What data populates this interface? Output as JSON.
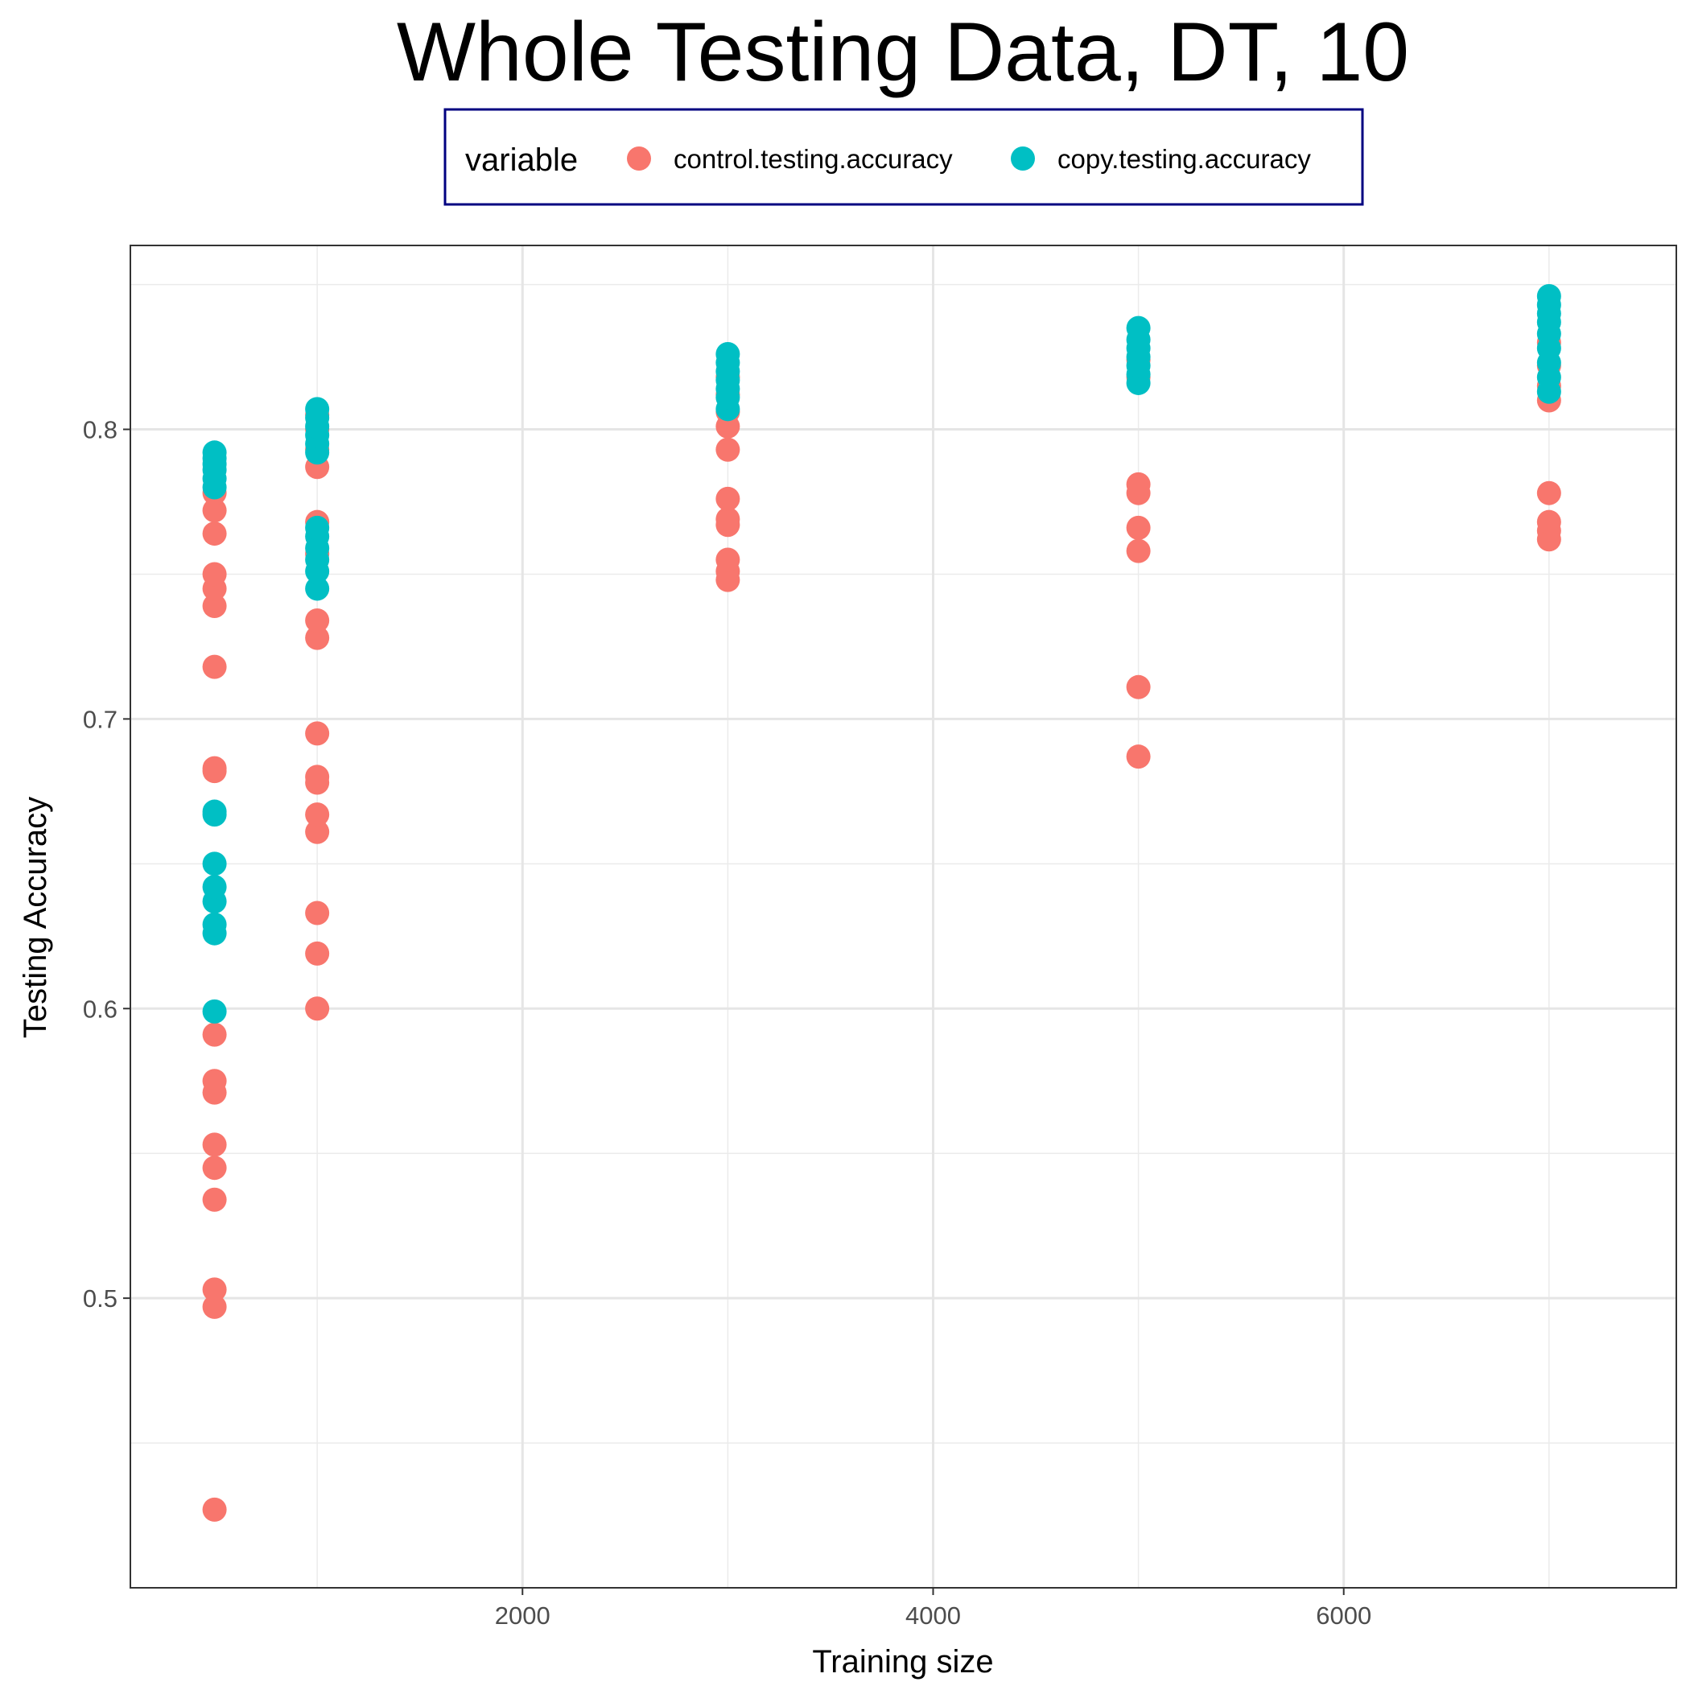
{
  "chart_data": {
    "type": "scatter",
    "title": "Whole Testing Data, DT, 10",
    "xlabel": "Training size",
    "ylabel": "Testing Accuracy",
    "xlim": [
      90,
      7620
    ],
    "ylim": [
      0.4,
      0.8635
    ],
    "x_ticks": [
      2000,
      4000,
      6000
    ],
    "x_tick_labels": [
      "2000",
      "4000",
      "6000"
    ],
    "y_ticks": [
      0.5,
      0.6,
      0.7,
      0.8
    ],
    "y_tick_labels": [
      "0.5",
      "0.6",
      "0.7",
      "0.8"
    ],
    "grid": true,
    "legend": {
      "title": "variable",
      "position": "top",
      "border_color": "#000080"
    },
    "series": [
      {
        "name": "control.testing.accuracy",
        "color": "#F8766D",
        "points": [
          [
            500,
            0.427
          ],
          [
            500,
            0.497
          ],
          [
            500,
            0.503
          ],
          [
            500,
            0.534
          ],
          [
            500,
            0.545
          ],
          [
            500,
            0.553
          ],
          [
            500,
            0.571
          ],
          [
            500,
            0.575
          ],
          [
            500,
            0.591
          ],
          [
            500,
            0.682
          ],
          [
            500,
            0.683
          ],
          [
            500,
            0.718
          ],
          [
            500,
            0.739
          ],
          [
            500,
            0.745
          ],
          [
            500,
            0.75
          ],
          [
            500,
            0.764
          ],
          [
            500,
            0.772
          ],
          [
            500,
            0.778
          ],
          [
            1000,
            0.6
          ],
          [
            1000,
            0.619
          ],
          [
            1000,
            0.633
          ],
          [
            1000,
            0.661
          ],
          [
            1000,
            0.667
          ],
          [
            1000,
            0.678
          ],
          [
            1000,
            0.68
          ],
          [
            1000,
            0.695
          ],
          [
            1000,
            0.728
          ],
          [
            1000,
            0.734
          ],
          [
            1000,
            0.757
          ],
          [
            1000,
            0.768
          ],
          [
            1000,
            0.787
          ],
          [
            1000,
            0.793
          ],
          [
            1000,
            0.8
          ],
          [
            1000,
            0.805
          ],
          [
            3000,
            0.748
          ],
          [
            3000,
            0.751
          ],
          [
            3000,
            0.755
          ],
          [
            3000,
            0.767
          ],
          [
            3000,
            0.769
          ],
          [
            3000,
            0.776
          ],
          [
            3000,
            0.793
          ],
          [
            3000,
            0.801
          ],
          [
            3000,
            0.806
          ],
          [
            3000,
            0.812
          ],
          [
            3000,
            0.818
          ],
          [
            5000,
            0.687
          ],
          [
            5000,
            0.711
          ],
          [
            5000,
            0.758
          ],
          [
            5000,
            0.766
          ],
          [
            5000,
            0.778
          ],
          [
            5000,
            0.781
          ],
          [
            5000,
            0.818
          ],
          [
            5000,
            0.824
          ],
          [
            7000,
            0.762
          ],
          [
            7000,
            0.765
          ],
          [
            7000,
            0.768
          ],
          [
            7000,
            0.778
          ],
          [
            7000,
            0.81
          ],
          [
            7000,
            0.815
          ],
          [
            7000,
            0.822
          ],
          [
            7000,
            0.83
          ]
        ]
      },
      {
        "name": "copy.testing.accuracy",
        "color": "#00BFC4",
        "points": [
          [
            500,
            0.599
          ],
          [
            500,
            0.626
          ],
          [
            500,
            0.629
          ],
          [
            500,
            0.637
          ],
          [
            500,
            0.642
          ],
          [
            500,
            0.65
          ],
          [
            500,
            0.667
          ],
          [
            500,
            0.668
          ],
          [
            500,
            0.78
          ],
          [
            500,
            0.783
          ],
          [
            500,
            0.786
          ],
          [
            500,
            0.788
          ],
          [
            500,
            0.79
          ],
          [
            500,
            0.792
          ],
          [
            1000,
            0.745
          ],
          [
            1000,
            0.751
          ],
          [
            1000,
            0.755
          ],
          [
            1000,
            0.759
          ],
          [
            1000,
            0.763
          ],
          [
            1000,
            0.766
          ],
          [
            1000,
            0.792
          ],
          [
            1000,
            0.795
          ],
          [
            1000,
            0.798
          ],
          [
            1000,
            0.801
          ],
          [
            1000,
            0.804
          ],
          [
            1000,
            0.807
          ],
          [
            3000,
            0.807
          ],
          [
            3000,
            0.811
          ],
          [
            3000,
            0.814
          ],
          [
            3000,
            0.817
          ],
          [
            3000,
            0.82
          ],
          [
            3000,
            0.823
          ],
          [
            3000,
            0.826
          ],
          [
            5000,
            0.816
          ],
          [
            5000,
            0.819
          ],
          [
            5000,
            0.822
          ],
          [
            5000,
            0.825
          ],
          [
            5000,
            0.828
          ],
          [
            5000,
            0.831
          ],
          [
            5000,
            0.835
          ],
          [
            7000,
            0.813
          ],
          [
            7000,
            0.818
          ],
          [
            7000,
            0.823
          ],
          [
            7000,
            0.828
          ],
          [
            7000,
            0.833
          ],
          [
            7000,
            0.837
          ],
          [
            7000,
            0.84
          ],
          [
            7000,
            0.843
          ],
          [
            7000,
            0.846
          ]
        ]
      }
    ]
  }
}
